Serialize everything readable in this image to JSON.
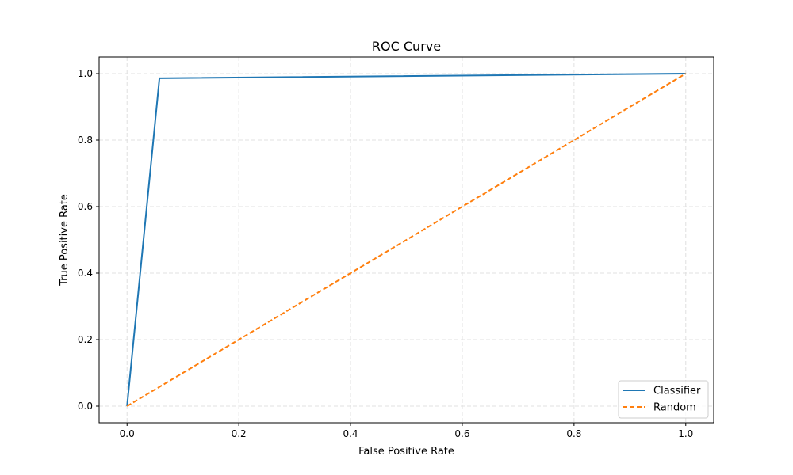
{
  "chart_data": {
    "type": "line",
    "title": "ROC Curve",
    "xlabel": "False Positive Rate",
    "ylabel": "True Positive Rate",
    "xlim": [
      -0.05,
      1.05
    ],
    "ylim": [
      -0.05,
      1.05
    ],
    "xticks": [
      "0.0",
      "0.2",
      "0.4",
      "0.6",
      "0.8",
      "1.0"
    ],
    "yticks": [
      "0.0",
      "0.2",
      "0.4",
      "0.6",
      "0.8",
      "1.0"
    ],
    "grid": true,
    "legend_position": "lower-right",
    "series": [
      {
        "name": "Classifier",
        "color": "#1f77b4",
        "style": "solid",
        "x": [
          0.0,
          0.058,
          1.0
        ],
        "y": [
          0.0,
          0.986,
          1.0
        ]
      },
      {
        "name": "Random",
        "color": "#ff7f0e",
        "style": "dashed",
        "x": [
          0.0,
          1.0
        ],
        "y": [
          0.0,
          1.0
        ]
      }
    ]
  }
}
